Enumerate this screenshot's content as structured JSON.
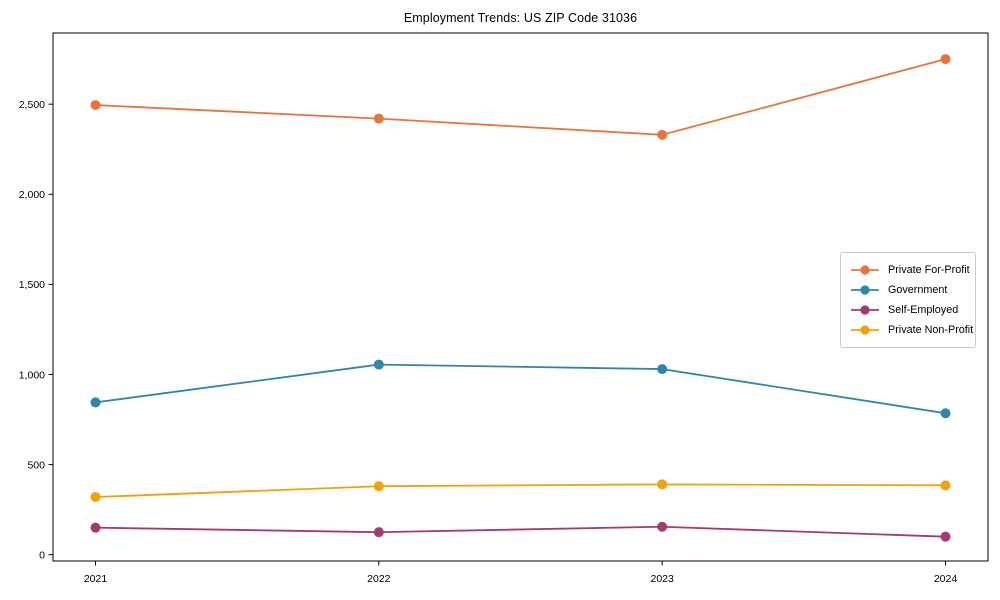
{
  "page": {
    "background": "#ffffff"
  },
  "chart_data": {
    "type": "line",
    "title": "Employment Trends: US ZIP Code 31036",
    "xlabel": "",
    "ylabel": "",
    "x": [
      2021,
      2022,
      2023,
      2024
    ],
    "x_tick_labels": [
      "2021",
      "2022",
      "2023",
      "2024"
    ],
    "y_tick_values": [
      0,
      500,
      1000,
      1500,
      2000,
      2500
    ],
    "y_tick_labels": [
      "0",
      "500",
      "1,000",
      "1,500",
      "2,000",
      "2,500"
    ],
    "xlim": [
      2020.85,
      2024.15
    ],
    "ylim": [
      -35,
      2895
    ],
    "grid": false,
    "frame": true,
    "marker": "circle",
    "legend_position": "center-right",
    "axis_color": "#000000",
    "series": [
      {
        "name": "Private For-Profit",
        "color": "#E8743B",
        "values": [
          2495,
          2420,
          2330,
          2750
        ]
      },
      {
        "name": "Government",
        "color": "#2E86AB",
        "values": [
          845,
          1055,
          1030,
          785
        ]
      },
      {
        "name": "Self-Employed",
        "color": "#A23B72",
        "values": [
          150,
          125,
          155,
          100
        ]
      },
      {
        "name": "Private Non-Profit",
        "color": "#F1A208",
        "values": [
          320,
          380,
          390,
          385
        ]
      }
    ]
  }
}
